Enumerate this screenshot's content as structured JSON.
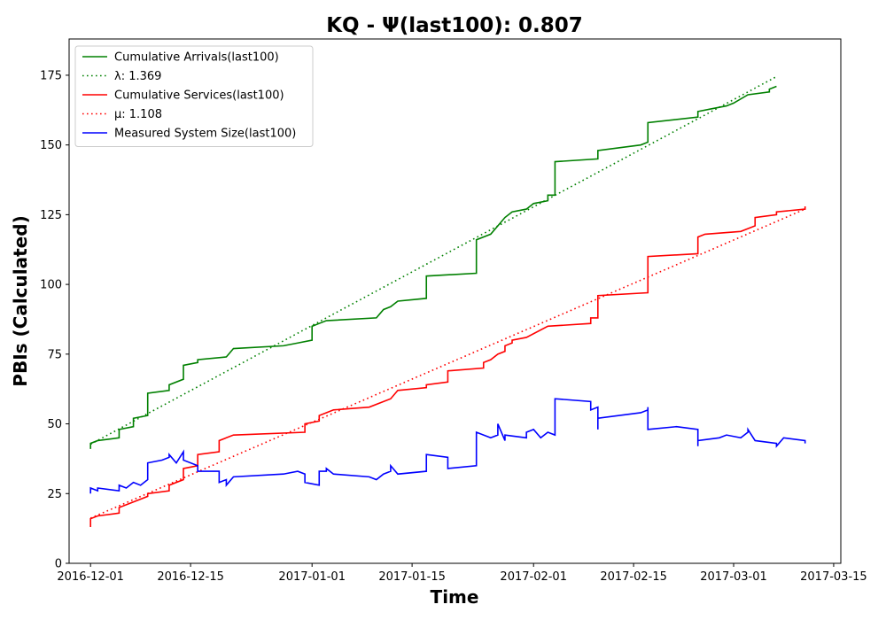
{
  "chart_data": {
    "type": "line",
    "title": "KQ -  Ψ(last100): 0.807",
    "xlabel": "Time",
    "ylabel": "PBIs (Calculated)",
    "xlim": [
      "2016-11-28",
      "2017-03-16"
    ],
    "ylim": [
      0,
      188
    ],
    "x_ticks": [
      "2016-12-01",
      "2016-12-15",
      "2017-01-01",
      "2017-01-15",
      "2017-02-01",
      "2017-02-15",
      "2017-03-01",
      "2017-03-15"
    ],
    "y_ticks": [
      0,
      25,
      50,
      75,
      100,
      125,
      150,
      175
    ],
    "grid": false,
    "legend_position": "top-left",
    "series": [
      {
        "name": "Cumulative Arrivals(last100)",
        "style": "solid",
        "color": "#008000",
        "points": [
          [
            "2016-12-01",
            41
          ],
          [
            "2016-12-01",
            43
          ],
          [
            "2016-12-02",
            44
          ],
          [
            "2016-12-05",
            45
          ],
          [
            "2016-12-05",
            48
          ],
          [
            "2016-12-07",
            49
          ],
          [
            "2016-12-07",
            52
          ],
          [
            "2016-12-09",
            53
          ],
          [
            "2016-12-09",
            61
          ],
          [
            "2016-12-12",
            62
          ],
          [
            "2016-12-12",
            64
          ],
          [
            "2016-12-14",
            66
          ],
          [
            "2016-12-14",
            71
          ],
          [
            "2016-12-16",
            72
          ],
          [
            "2016-12-16",
            73
          ],
          [
            "2016-12-20",
            74
          ],
          [
            "2016-12-21",
            77
          ],
          [
            "2016-12-28",
            78
          ],
          [
            "2016-12-30",
            79
          ],
          [
            "2017-01-01",
            80
          ],
          [
            "2017-01-01",
            85
          ],
          [
            "2017-01-02",
            86
          ],
          [
            "2017-01-03",
            87
          ],
          [
            "2017-01-10",
            88
          ],
          [
            "2017-01-11",
            91
          ],
          [
            "2017-01-12",
            92
          ],
          [
            "2017-01-13",
            94
          ],
          [
            "2017-01-17",
            95
          ],
          [
            "2017-01-17",
            103
          ],
          [
            "2017-01-24",
            104
          ],
          [
            "2017-01-24",
            116
          ],
          [
            "2017-01-26",
            118
          ],
          [
            "2017-01-27",
            121
          ],
          [
            "2017-01-28",
            124
          ],
          [
            "2017-01-29",
            126
          ],
          [
            "2017-01-31",
            127
          ],
          [
            "2017-02-01",
            129
          ],
          [
            "2017-02-03",
            130
          ],
          [
            "2017-02-03",
            132
          ],
          [
            "2017-02-04",
            132
          ],
          [
            "2017-02-04",
            144
          ],
          [
            "2017-02-10",
            145
          ],
          [
            "2017-02-10",
            148
          ],
          [
            "2017-02-16",
            150
          ],
          [
            "2017-02-17",
            151
          ],
          [
            "2017-02-17",
            158
          ],
          [
            "2017-02-24",
            160
          ],
          [
            "2017-02-24",
            162
          ],
          [
            "2017-02-26",
            163
          ],
          [
            "2017-02-28",
            164
          ],
          [
            "2017-03-01",
            165
          ],
          [
            "2017-03-03",
            168
          ],
          [
            "2017-03-06",
            169
          ],
          [
            "2017-03-06",
            170
          ],
          [
            "2017-03-07",
            171
          ]
        ]
      },
      {
        "name": "λ: 1.369",
        "style": "dotted",
        "color": "#008000",
        "points": [
          [
            "2016-12-01",
            42.7
          ],
          [
            "2017-03-07",
            174.5
          ]
        ]
      },
      {
        "name": "Cumulative Services(last100)",
        "style": "solid",
        "color": "#ff0000",
        "points": [
          [
            "2016-12-01",
            13
          ],
          [
            "2016-12-01",
            16
          ],
          [
            "2016-12-02",
            17
          ],
          [
            "2016-12-05",
            18
          ],
          [
            "2016-12-05",
            20
          ],
          [
            "2016-12-09",
            24
          ],
          [
            "2016-12-09",
            25
          ],
          [
            "2016-12-12",
            26
          ],
          [
            "2016-12-12",
            28
          ],
          [
            "2016-12-14",
            30
          ],
          [
            "2016-12-14",
            34
          ],
          [
            "2016-12-16",
            35
          ],
          [
            "2016-12-16",
            39
          ],
          [
            "2016-12-19",
            40
          ],
          [
            "2016-12-19",
            44
          ],
          [
            "2016-12-20",
            45
          ],
          [
            "2016-12-21",
            46
          ],
          [
            "2016-12-31",
            47
          ],
          [
            "2016-12-31",
            50
          ],
          [
            "2017-01-02",
            51
          ],
          [
            "2017-01-02",
            53
          ],
          [
            "2017-01-03",
            54
          ],
          [
            "2017-01-04",
            55
          ],
          [
            "2017-01-09",
            56
          ],
          [
            "2017-01-12",
            59
          ],
          [
            "2017-01-13",
            62
          ],
          [
            "2017-01-17",
            63
          ],
          [
            "2017-01-17",
            64
          ],
          [
            "2017-01-20",
            65
          ],
          [
            "2017-01-20",
            69
          ],
          [
            "2017-01-25",
            70
          ],
          [
            "2017-01-25",
            72
          ],
          [
            "2017-01-26",
            73
          ],
          [
            "2017-01-27",
            75
          ],
          [
            "2017-01-28",
            76
          ],
          [
            "2017-01-28",
            78
          ],
          [
            "2017-01-29",
            79
          ],
          [
            "2017-01-29",
            80
          ],
          [
            "2017-01-31",
            81
          ],
          [
            "2017-02-03",
            85
          ],
          [
            "2017-02-09",
            86
          ],
          [
            "2017-02-09",
            88
          ],
          [
            "2017-02-10",
            88
          ],
          [
            "2017-02-10",
            96
          ],
          [
            "2017-02-17",
            97
          ],
          [
            "2017-02-17",
            110
          ],
          [
            "2017-02-24",
            111
          ],
          [
            "2017-02-24",
            117
          ],
          [
            "2017-02-25",
            118
          ],
          [
            "2017-03-02",
            119
          ],
          [
            "2017-03-04",
            121
          ],
          [
            "2017-03-04",
            124
          ],
          [
            "2017-03-07",
            125
          ],
          [
            "2017-03-07",
            126
          ],
          [
            "2017-03-11",
            127
          ],
          [
            "2017-03-11",
            128
          ]
        ]
      },
      {
        "name": "μ: 1.108",
        "style": "dotted",
        "color": "#ff0000",
        "points": [
          [
            "2016-12-01",
            16.2
          ],
          [
            "2017-03-11",
            127
          ]
        ]
      },
      {
        "name": "Measured System Size(last100)",
        "style": "solid",
        "color": "#0000ff",
        "points": [
          [
            "2016-12-01",
            26
          ],
          [
            "2016-12-01",
            25
          ],
          [
            "2016-12-01",
            27
          ],
          [
            "2016-12-02",
            26
          ],
          [
            "2016-12-02",
            27
          ],
          [
            "2016-12-05",
            26
          ],
          [
            "2016-12-05",
            28
          ],
          [
            "2016-12-06",
            27
          ],
          [
            "2016-12-07",
            29
          ],
          [
            "2016-12-08",
            28
          ],
          [
            "2016-12-09",
            30
          ],
          [
            "2016-12-09",
            36
          ],
          [
            "2016-12-11",
            37
          ],
          [
            "2016-12-12",
            38
          ],
          [
            "2016-12-12",
            39
          ],
          [
            "2016-12-13",
            36
          ],
          [
            "2016-12-14",
            40
          ],
          [
            "2016-12-14",
            37
          ],
          [
            "2016-12-16",
            35
          ],
          [
            "2016-12-16",
            33
          ],
          [
            "2016-12-19",
            33
          ],
          [
            "2016-12-19",
            29
          ],
          [
            "2016-12-20",
            30
          ],
          [
            "2016-12-20",
            28
          ],
          [
            "2016-12-21",
            31
          ],
          [
            "2016-12-28",
            32
          ],
          [
            "2016-12-30",
            33
          ],
          [
            "2016-12-31",
            32
          ],
          [
            "2016-12-31",
            29
          ],
          [
            "2017-01-02",
            28
          ],
          [
            "2017-01-02",
            33
          ],
          [
            "2017-01-03",
            33
          ],
          [
            "2017-01-03",
            34
          ],
          [
            "2017-01-04",
            32
          ],
          [
            "2017-01-09",
            31
          ],
          [
            "2017-01-10",
            30
          ],
          [
            "2017-01-11",
            32
          ],
          [
            "2017-01-12",
            33
          ],
          [
            "2017-01-12",
            35
          ],
          [
            "2017-01-13",
            32
          ],
          [
            "2017-01-17",
            33
          ],
          [
            "2017-01-17",
            39
          ],
          [
            "2017-01-20",
            38
          ],
          [
            "2017-01-20",
            34
          ],
          [
            "2017-01-24",
            35
          ],
          [
            "2017-01-24",
            47
          ],
          [
            "2017-01-26",
            45
          ],
          [
            "2017-01-27",
            46
          ],
          [
            "2017-01-27",
            50
          ],
          [
            "2017-01-28",
            44
          ],
          [
            "2017-01-28",
            46
          ],
          [
            "2017-01-31",
            45
          ],
          [
            "2017-01-31",
            47
          ],
          [
            "2017-02-01",
            48
          ],
          [
            "2017-02-02",
            45
          ],
          [
            "2017-02-03",
            47
          ],
          [
            "2017-02-04",
            46
          ],
          [
            "2017-02-04",
            59
          ],
          [
            "2017-02-09",
            58
          ],
          [
            "2017-02-09",
            55
          ],
          [
            "2017-02-10",
            56
          ],
          [
            "2017-02-10",
            48
          ],
          [
            "2017-02-10",
            52
          ],
          [
            "2017-02-16",
            54
          ],
          [
            "2017-02-17",
            55
          ],
          [
            "2017-02-17",
            56
          ],
          [
            "2017-02-17",
            48
          ],
          [
            "2017-02-21",
            49
          ],
          [
            "2017-02-24",
            48
          ],
          [
            "2017-02-24",
            42
          ],
          [
            "2017-02-24",
            44
          ],
          [
            "2017-02-27",
            45
          ],
          [
            "2017-02-28",
            46
          ],
          [
            "2017-03-02",
            45
          ],
          [
            "2017-03-03",
            47
          ],
          [
            "2017-03-03",
            48
          ],
          [
            "2017-03-04",
            44
          ],
          [
            "2017-03-07",
            43
          ],
          [
            "2017-03-07",
            42
          ],
          [
            "2017-03-08",
            45
          ],
          [
            "2017-03-11",
            44
          ],
          [
            "2017-03-11",
            43
          ]
        ]
      }
    ]
  }
}
